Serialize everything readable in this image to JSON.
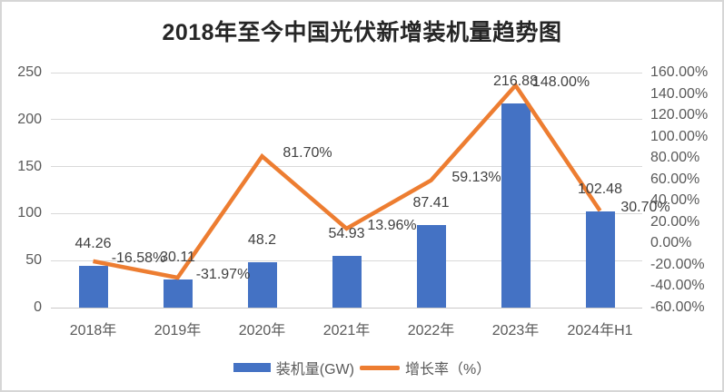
{
  "title": "2018年至今中国光伏新增装机量趋势图",
  "colors": {
    "bar": "#4472C4",
    "line": "#ED7D31",
    "gridline": "#D9D9D9",
    "axis_line": "#CBC9C9",
    "axis_text": "#595959",
    "data_label_text": "#404040",
    "title_text": "#262626",
    "border": "#D6D6D6",
    "background": "#FFFFFF"
  },
  "chart_data": {
    "type": "combo-bar-line",
    "title": "2018年至今中国光伏新增装机量趋势图",
    "categories": [
      "2018年",
      "2019年",
      "2020年",
      "2021年",
      "2022年",
      "2023年",
      "2024年H1"
    ],
    "series": [
      {
        "name": "装机量(GW)",
        "type": "bar",
        "axis": "left",
        "values": [
          44.26,
          30.11,
          48.2,
          54.93,
          87.41,
          216.88,
          102.48
        ],
        "data_labels": [
          "44.26",
          "30.11",
          "48.2",
          "54.93",
          "87.41",
          "216.88",
          "102.48"
        ]
      },
      {
        "name": "增长率（%）",
        "type": "line",
        "axis": "right",
        "values": [
          -16.58,
          -31.97,
          81.7,
          13.96,
          59.13,
          148.0,
          30.7
        ],
        "data_labels": [
          "-16.58%",
          "-31.97%",
          "81.70%",
          "13.96%",
          "59.13%",
          "148.00%",
          "30.70%"
        ]
      }
    ],
    "left_axis": {
      "min": 0,
      "max": 250,
      "ticks": [
        {
          "value": 0,
          "label": "0"
        },
        {
          "value": 50,
          "label": "50"
        },
        {
          "value": 100,
          "label": "100"
        },
        {
          "value": 150,
          "label": "150"
        },
        {
          "value": 200,
          "label": "200"
        },
        {
          "value": 250,
          "label": "250"
        }
      ]
    },
    "right_axis": {
      "min": -60,
      "max": 160,
      "ticks": [
        {
          "value": 160,
          "label": "160.00%"
        },
        {
          "value": 140,
          "label": "140.00%"
        },
        {
          "value": 120,
          "label": "120.00%"
        },
        {
          "value": 100,
          "label": "100.00%"
        },
        {
          "value": 80,
          "label": "80.00%"
        },
        {
          "value": 60,
          "label": "60.00%"
        },
        {
          "value": 40,
          "label": "40.00%"
        },
        {
          "value": 20,
          "label": "20.00%"
        },
        {
          "value": 0,
          "label": "0.00%"
        },
        {
          "value": -20,
          "label": "-20.00%"
        },
        {
          "value": -40,
          "label": "-40.00%"
        },
        {
          "value": -60,
          "label": "-60.00%"
        }
      ]
    },
    "legend_position": "bottom",
    "grid": "horizontal"
  }
}
